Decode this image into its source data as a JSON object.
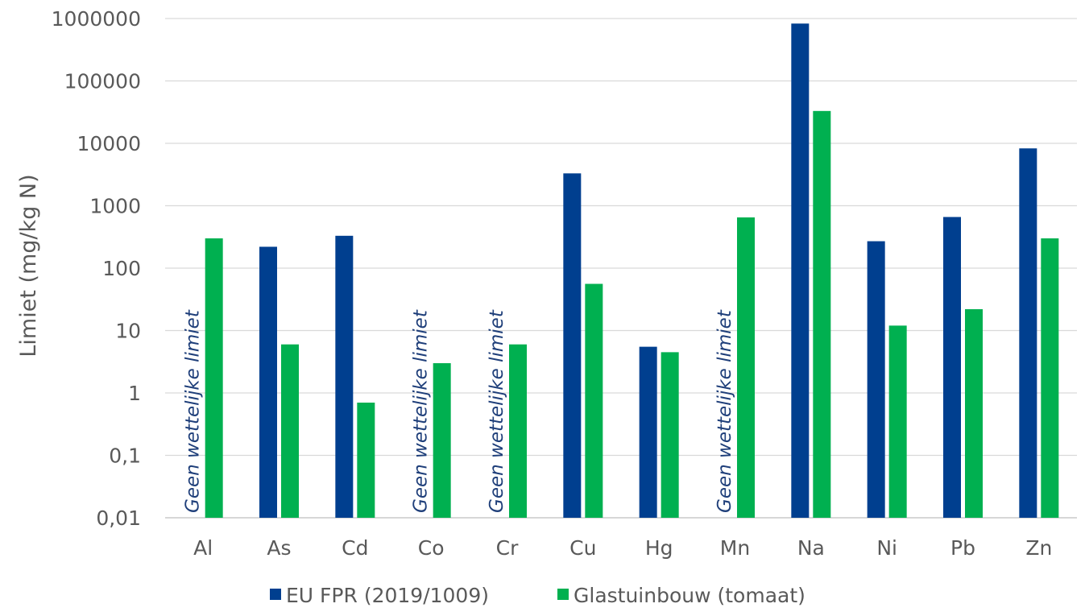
{
  "chart_data": {
    "type": "bar",
    "ylabel": "Limiet (mg/kg N)",
    "yscale": "log",
    "ylim": [
      0.01,
      1000000
    ],
    "ytick_labels": [
      "0,01",
      "0,1",
      "1",
      "10",
      "100",
      "1000",
      "10000",
      "100000",
      "1000000"
    ],
    "grid": true,
    "legend_position": "bottom",
    "categories": [
      "Al",
      "As",
      "Cd",
      "Co",
      "Cr",
      "Cu",
      "Hg",
      "Mn",
      "Na",
      "Ni",
      "Pb",
      "Zn"
    ],
    "series": [
      {
        "name": "EU FPR (2019/1009)",
        "color": "#003f8f",
        "values": [
          null,
          220,
          330,
          null,
          null,
          3300,
          5.5,
          null,
          830000,
          270,
          660,
          8300
        ]
      },
      {
        "name": "Glastuinbouw (tomaat)",
        "color": "#00b050",
        "values": [
          300,
          6,
          0.7,
          3,
          6,
          56,
          4.5,
          650,
          33000,
          12,
          22,
          300
        ]
      }
    ],
    "annotation_text": "Geen wettelijke limiet",
    "annotation_categories": [
      "Al",
      "Co",
      "Cr",
      "Mn"
    ]
  }
}
